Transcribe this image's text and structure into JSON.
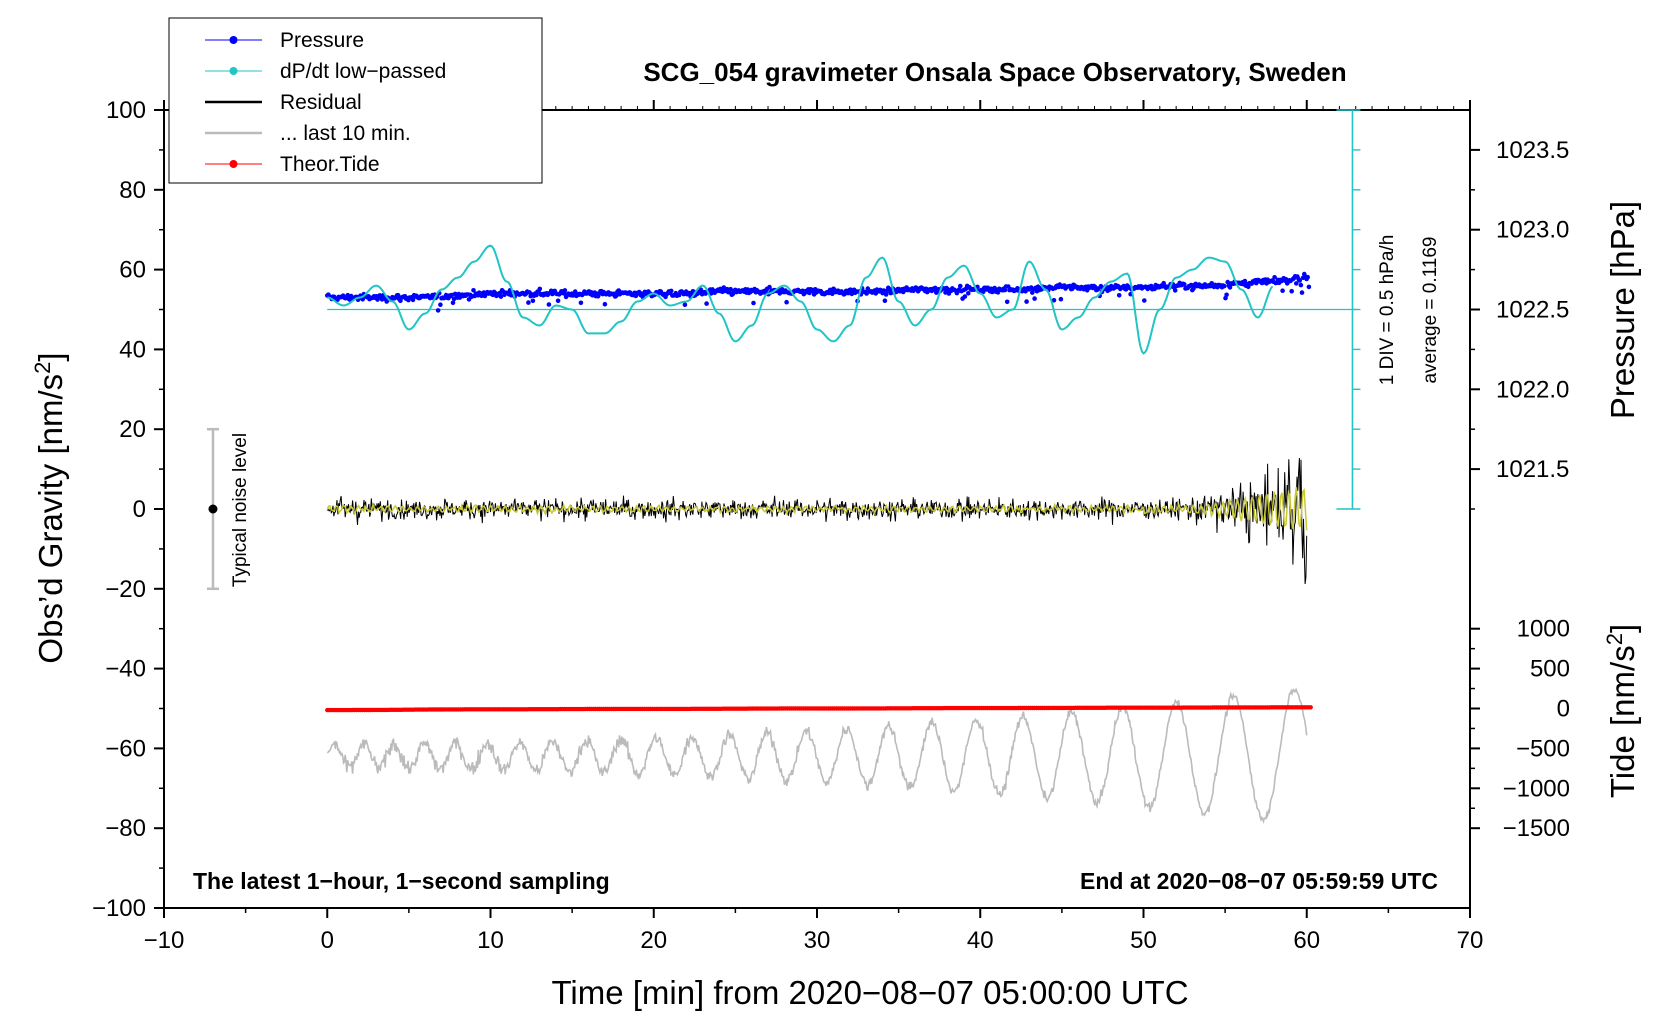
{
  "chart_data": {
    "type": "line",
    "title": "SCG_054 gravimeter Onsala Space Observatory, Sweden",
    "xlabel": "Time [min] from 2020−08−07 05:00:00 UTC",
    "ylabel_left_main": "Obs’d Gravity [nm/s",
    "ylabel_left_sup": "2",
    "ylabel_left_end": "]",
    "ylabel_right_pressure": "Pressure [hPa]",
    "ylabel_right_tide_main": "Tide [nm/s",
    "ylabel_right_tide_sup": "2",
    "ylabel_right_tide_end": "]",
    "xlim": [
      -10,
      70
    ],
    "ylim": [
      -100,
      100
    ],
    "x_ticks": [
      -10,
      0,
      10,
      20,
      30,
      40,
      50,
      60,
      70
    ],
    "x_tick_labels": [
      "−10",
      "0",
      "10",
      "20",
      "30",
      "40",
      "50",
      "60",
      "70"
    ],
    "y_ticks": [
      100,
      80,
      60,
      40,
      20,
      0,
      -20,
      -40,
      -60,
      -80,
      -100
    ],
    "y_tick_labels": [
      "100",
      "80",
      "60",
      "40",
      "20",
      "0",
      "−20",
      "−40",
      "−60",
      "−80",
      "−100"
    ],
    "pressure_ticks": [
      1023.5,
      1023.0,
      1022.5,
      1022.0,
      1021.5
    ],
    "pressure_tick_labels": [
      "1023.5",
      "1023.0",
      "1022.5",
      "1022.0",
      "1021.5"
    ],
    "pressure_scale": {
      "value_at_gravity_50": 1022.5,
      "hpa_per_gravity_unit": 0.025
    },
    "tide_ticks": [
      1000,
      500,
      0,
      -500,
      -1000,
      -1500
    ],
    "tide_tick_labels": [
      "1000",
      "500",
      "0",
      "−500",
      "−1000",
      "−1500"
    ],
    "tide_scale": {
      "value_at_gravity_minus_50": 0,
      "tide_units_per_gravity_unit": 50
    },
    "legend": [
      {
        "label": "Pressure",
        "color": "#0000ff",
        "marker": "dot"
      },
      {
        "label": "dP/dt low−passed",
        "color": "#22c4c4",
        "marker": "dot"
      },
      {
        "label": "Residual",
        "color": "#000000",
        "marker": "line"
      },
      {
        "label": "... last 10 min.",
        "color": "#bbbbbb",
        "marker": "line"
      },
      {
        "label": "Theor.Tide",
        "color": "#ff0000",
        "marker": "dot"
      }
    ],
    "annotations": {
      "bottom_left": "The latest 1−hour, 1−second sampling",
      "bottom_right": "End at 2020−08−07 05:59:59 UTC",
      "noise": "Typical noise level",
      "div_scale": "1 DIV = 0.5 hPa/h",
      "average": "average = 0.1169"
    },
    "noise_bar": {
      "x": -7,
      "center": 0,
      "low": -20,
      "high": 20
    },
    "dpdt_scale_bar": {
      "x": 62.8,
      "low": 0,
      "high": 100,
      "divisions": 10
    },
    "series": [
      {
        "name": "Pressure",
        "color": "#0000ff",
        "x": [
          0,
          2,
          4,
          6,
          8,
          10,
          12,
          14,
          16,
          18,
          20,
          22,
          24,
          26,
          28,
          30,
          32,
          34,
          36,
          38,
          40,
          42,
          44,
          46,
          48,
          50,
          52,
          54,
          56,
          58,
          60
        ],
        "y": [
          53,
          53,
          53,
          53,
          53.5,
          54,
          54,
          54,
          54,
          54,
          54,
          54,
          54.5,
          54.5,
          54.5,
          54.5,
          54.5,
          54.5,
          55,
          55,
          55,
          55,
          55.5,
          55.5,
          55.5,
          55.5,
          56,
          56,
          56.5,
          57,
          58
        ]
      },
      {
        "name": "dP/dt low-passed",
        "color": "#22c4c4",
        "x": [
          0,
          1,
          2,
          3,
          4,
          5,
          6,
          7,
          8,
          9,
          10,
          11,
          12,
          13,
          14,
          15,
          16,
          17,
          18,
          19,
          20,
          21,
          22,
          23,
          24,
          25,
          26,
          27,
          28,
          29,
          30,
          31,
          32,
          33,
          34,
          35,
          36,
          37,
          38,
          39,
          40,
          41,
          42,
          43,
          44,
          45,
          46,
          47,
          48,
          49,
          50,
          51,
          52,
          53,
          54,
          55,
          56,
          57,
          58
        ],
        "y": [
          53,
          51,
          53,
          56,
          52,
          45,
          49,
          55,
          58,
          62,
          66,
          57,
          48,
          46,
          51,
          50,
          44,
          44,
          47,
          52,
          54,
          51,
          52,
          56,
          49,
          42,
          46,
          54,
          56,
          52,
          45,
          42,
          46,
          58,
          63,
          52,
          46,
          50,
          58,
          61,
          54,
          48,
          50,
          62,
          55,
          45,
          48,
          53,
          57,
          59,
          39,
          50,
          58,
          60,
          63,
          62,
          55,
          48,
          56
        ]
      },
      {
        "name": "Residual",
        "color": "#000000",
        "x": [
          0,
          60
        ],
        "y": [
          0,
          0
        ]
      },
      {
        "name": "... last 10 min.",
        "color": "#bbbbbb",
        "x": [
          0,
          60
        ],
        "y": [
          -62,
          -62
        ]
      },
      {
        "name": "Theor.Tide",
        "color": "#ff0000",
        "x": [
          0,
          10,
          20,
          30,
          40,
          50,
          60
        ],
        "y": [
          -50.4,
          -50.2,
          -50.1,
          -50.0,
          -49.9,
          -49.8,
          -49.7
        ]
      }
    ]
  }
}
